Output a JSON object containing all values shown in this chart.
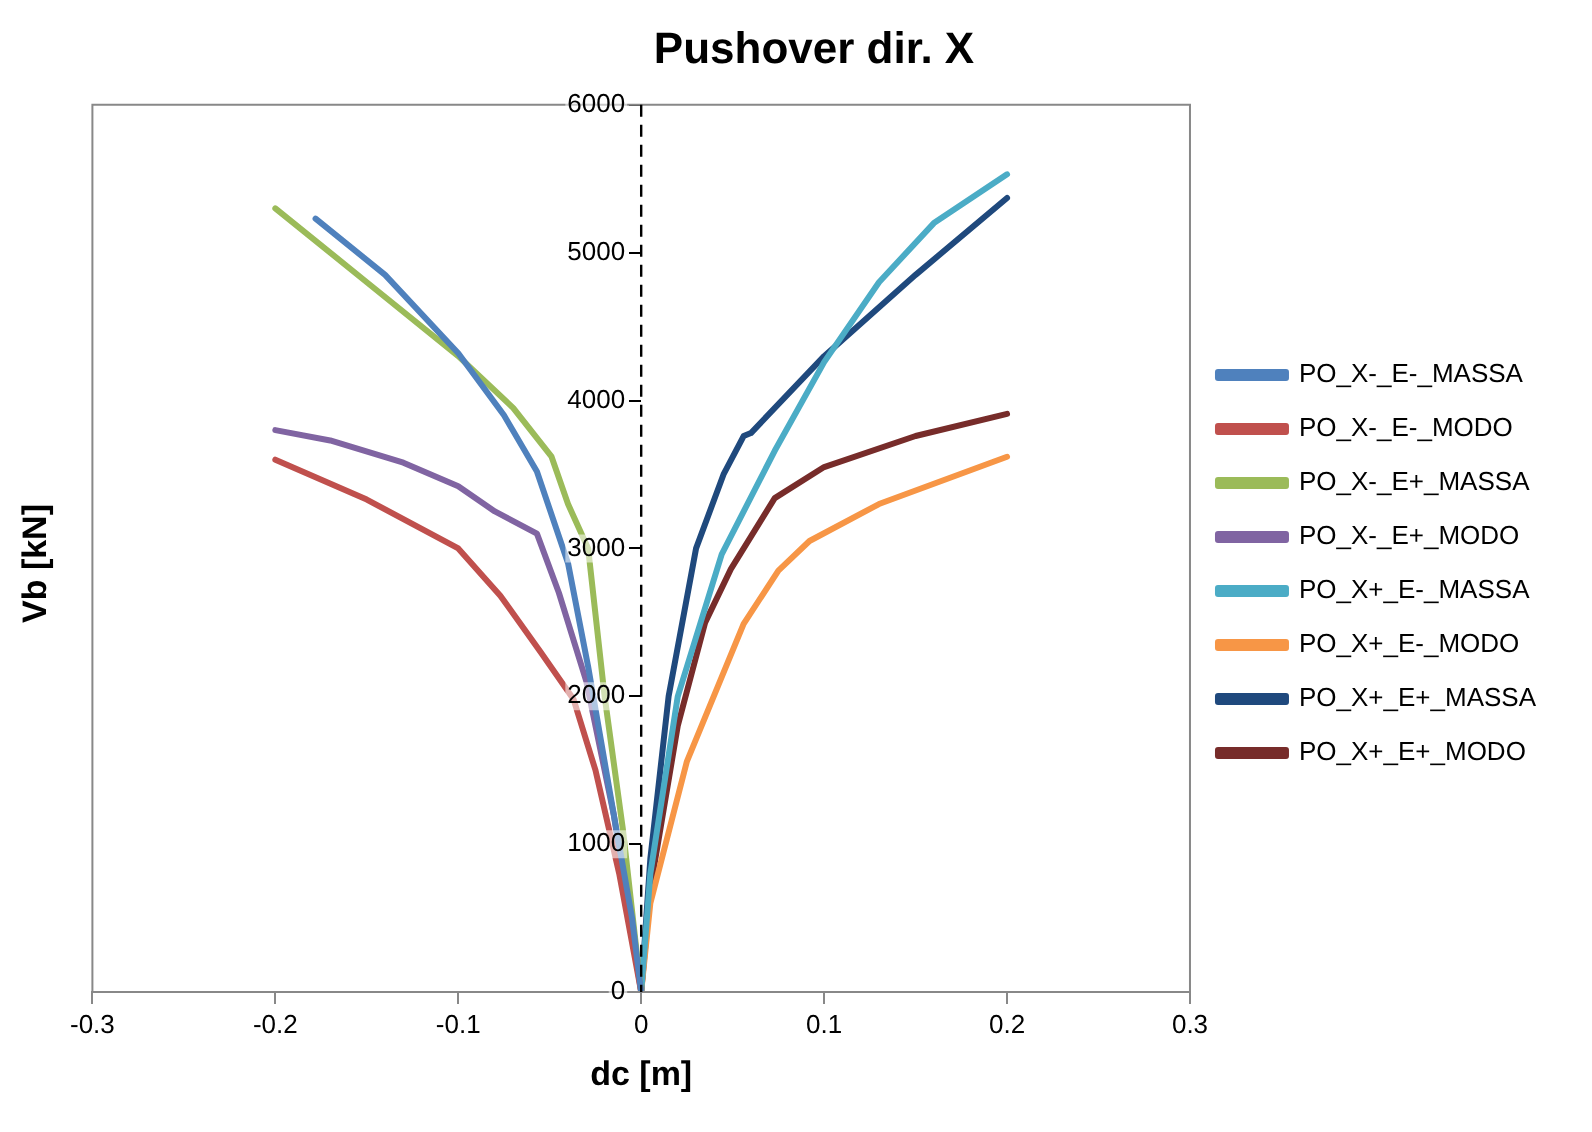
{
  "chart_data": {
    "type": "line",
    "title": "Pushover dir. X",
    "xlabel": "dc [m]",
    "ylabel": "Vb [kN]",
    "xlim": [
      -0.3,
      0.3
    ],
    "xticks": [
      -0.3,
      -0.2,
      -0.1,
      0,
      0.1,
      0.2,
      0.3
    ],
    "ylim": [
      0,
      6000
    ],
    "yticks": [
      0,
      1000,
      2000,
      3000,
      4000,
      5000,
      6000
    ],
    "grid": false,
    "legend": "right",
    "marker": "none",
    "line_style": "solid",
    "ref_lines": [
      {
        "axis": "x",
        "value": 0,
        "line_style": "dashed",
        "color": "#000000"
      }
    ],
    "series": [
      {
        "name": "PO_X-_E-_MASSA",
        "color": "#4f81bd",
        "x": [
          -0.178,
          -0.14,
          -0.1,
          -0.075,
          -0.057,
          -0.04,
          -0.029,
          -0.015,
          -0.005,
          0
        ],
        "values": [
          5230,
          4850,
          4320,
          3900,
          3520,
          2900,
          2200,
          1200,
          500,
          0
        ]
      },
      {
        "name": "PO_X-_E-_MODO",
        "color": "#c0504d",
        "x": [
          -0.2,
          -0.15,
          -0.1,
          -0.077,
          -0.055,
          -0.037,
          -0.025,
          -0.012,
          0
        ],
        "values": [
          3600,
          3330,
          3000,
          2680,
          2300,
          1980,
          1500,
          800,
          0
        ]
      },
      {
        "name": "PO_X-_E+_MASSA",
        "color": "#9bbb59",
        "x": [
          -0.2,
          -0.15,
          -0.1,
          -0.07,
          -0.049,
          -0.04,
          -0.029,
          -0.02,
          -0.01,
          0
        ],
        "values": [
          5300,
          4800,
          4300,
          3950,
          3620,
          3300,
          3000,
          2000,
          1100,
          0
        ]
      },
      {
        "name": "PO_X-_E+_MODO",
        "color": "#8064a2",
        "x": [
          -0.2,
          -0.17,
          -0.13,
          -0.1,
          -0.08,
          -0.057,
          -0.045,
          -0.03,
          -0.015,
          0
        ],
        "values": [
          3800,
          3730,
          3580,
          3420,
          3250,
          3100,
          2700,
          2100,
          1200,
          0
        ]
      },
      {
        "name": "PO_X+_E-_MASSA",
        "color": "#4bacc6",
        "x": [
          0,
          0.005,
          0.02,
          0.044,
          0.073,
          0.1,
          0.13,
          0.16,
          0.2
        ],
        "values": [
          0,
          800,
          2000,
          2960,
          3660,
          4260,
          4800,
          5200,
          5530
        ]
      },
      {
        "name": "PO_X+_E-_MODO",
        "color": "#f79646",
        "x": [
          0,
          0.005,
          0.025,
          0.056,
          0.075,
          0.092,
          0.13,
          0.2
        ],
        "values": [
          0,
          600,
          1560,
          2490,
          2850,
          3050,
          3300,
          3620
        ]
      },
      {
        "name": "PO_X+_E+_MASSA",
        "color": "#1f497d",
        "x": [
          0,
          0.005,
          0.015,
          0.03,
          0.045,
          0.056,
          0.06,
          0.1,
          0.15,
          0.2
        ],
        "values": [
          0,
          900,
          2000,
          3000,
          3500,
          3760,
          3780,
          4300,
          4850,
          5370
        ]
      },
      {
        "name": "PO_X+_E+_MODO",
        "color": "#772c2a",
        "x": [
          0,
          0.005,
          0.02,
          0.035,
          0.049,
          0.073,
          0.1,
          0.15,
          0.2
        ],
        "values": [
          0,
          700,
          1800,
          2500,
          2860,
          3340,
          3550,
          3760,
          3910
        ]
      }
    ]
  }
}
